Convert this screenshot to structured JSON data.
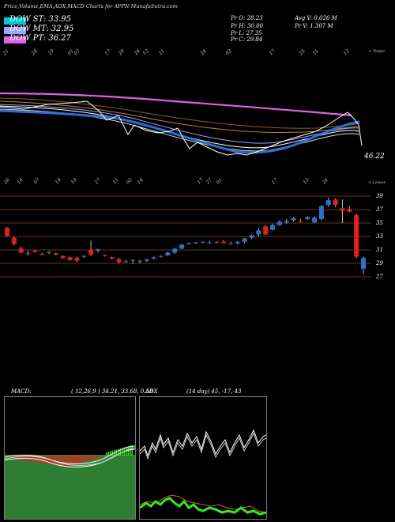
{
  "header": {
    "title": "Price,Volume,EMA,ADX,MACD Charts for APPN  MunafaSutra.com"
  },
  "legend": [
    {
      "label": "DOW ST: 33.95",
      "color": "#00c8d2"
    },
    {
      "label": "DOW MT: 32.95",
      "color": "#9ea5ff"
    },
    {
      "label": "DOW PT: 36.27",
      "color": "#e060e6"
    }
  ],
  "stats": {
    "pr_o": "Pr  O: 28.23",
    "pr_h": "Pr  H: 30.00",
    "pr_l": "Pr  L: 27.35",
    "pr_c": "Pr  C: 29.84",
    "avg_v": "Avg V: 0.026  M",
    "pr_v": "Pr  V: 1.307 M"
  },
  "panel_labels": {
    "top_tag": "< Toppe",
    "bottom_tag": "< Lowes",
    "price_label": "46.22"
  },
  "top_ticks": [
    "21",
    "28",
    "29",
    "01",
    "07",
    "17",
    "20",
    "24",
    "13",
    "21",
    "24",
    "03",
    "17",
    "25",
    "31",
    "12",
    "20",
    "25"
  ],
  "bottom_ticks": [
    "26",
    "16",
    "07",
    "19",
    "10",
    "27",
    "11",
    "02",
    "14",
    "17",
    "27",
    "01",
    "17",
    "13",
    "26"
  ],
  "colors": {
    "up": "#2b6fd6",
    "down": "#e31e1e",
    "ema_fast": "#2b6fd6",
    "ema_slow": "#d9462a",
    "grid": "#6b3514"
  },
  "macd": {
    "label": "MACD:",
    "params": "( 12,26,9 ) 34.21,  33.68,  0.58"
  },
  "adx": {
    "label": "ADX",
    "params": "(14  day) 45,  -17,  43"
  },
  "chart_data": {
    "type": "candlestick",
    "y_ticks": [
      "39",
      "37",
      "35",
      "33",
      "31",
      "29",
      "27"
    ],
    "y_range": [
      27,
      39
    ],
    "candles": [
      {
        "o": 34.3,
        "h": 34.4,
        "l": 33.0,
        "c": 33.1
      },
      {
        "o": 32.8,
        "h": 33.0,
        "l": 31.7,
        "c": 31.9
      },
      {
        "o": 31.2,
        "h": 31.5,
        "l": 30.5,
        "c": 30.6
      },
      {
        "o": 30.5,
        "h": 30.9,
        "l": 30.2,
        "c": 30.4
      },
      {
        "o": 30.9,
        "h": 31.0,
        "l": 30.6,
        "c": 30.7
      },
      {
        "o": 30.4,
        "h": 30.6,
        "l": 30.2,
        "c": 30.3
      },
      {
        "o": 30.6,
        "h": 30.8,
        "l": 30.4,
        "c": 30.7
      },
      {
        "o": 30.5,
        "h": 30.6,
        "l": 30.2,
        "c": 30.3
      },
      {
        "o": 30.1,
        "h": 30.2,
        "l": 29.7,
        "c": 29.8
      },
      {
        "o": 29.9,
        "h": 30.0,
        "l": 29.4,
        "c": 29.5
      },
      {
        "o": 29.8,
        "h": 30.0,
        "l": 29.2,
        "c": 29.4
      },
      {
        "o": 30.0,
        "h": 30.2,
        "l": 29.8,
        "c": 30.1
      },
      {
        "o": 31.0,
        "h": 32.4,
        "l": 30.1,
        "c": 30.3
      },
      {
        "o": 30.9,
        "h": 31.2,
        "l": 30.6,
        "c": 31.1
      },
      {
        "o": 30.2,
        "h": 30.3,
        "l": 30.0,
        "c": 30.1
      },
      {
        "o": 29.9,
        "h": 30.0,
        "l": 29.6,
        "c": 29.7
      },
      {
        "o": 29.6,
        "h": 29.8,
        "l": 29.0,
        "c": 29.2
      },
      {
        "o": 29.3,
        "h": 29.5,
        "l": 29.1,
        "c": 29.3
      },
      {
        "o": 29.4,
        "h": 29.6,
        "l": 28.9,
        "c": 29.5
      },
      {
        "o": 29.3,
        "h": 29.5,
        "l": 29.0,
        "c": 29.4
      },
      {
        "o": 29.4,
        "h": 29.7,
        "l": 29.2,
        "c": 29.6
      },
      {
        "o": 29.7,
        "h": 30.0,
        "l": 29.6,
        "c": 29.9
      },
      {
        "o": 30.0,
        "h": 30.2,
        "l": 29.9,
        "c": 30.1
      },
      {
        "o": 30.2,
        "h": 30.7,
        "l": 30.1,
        "c": 30.6
      },
      {
        "o": 30.6,
        "h": 31.3,
        "l": 30.4,
        "c": 31.2
      },
      {
        "o": 31.2,
        "h": 31.9,
        "l": 31.1,
        "c": 31.8
      },
      {
        "o": 31.9,
        "h": 32.1,
        "l": 31.8,
        "c": 32.0
      },
      {
        "o": 32.0,
        "h": 32.2,
        "l": 31.9,
        "c": 32.1
      },
      {
        "o": 32.1,
        "h": 32.3,
        "l": 32.0,
        "c": 32.2
      },
      {
        "o": 32.1,
        "h": 32.3,
        "l": 31.9,
        "c": 32.1
      },
      {
        "o": 32.2,
        "h": 32.3,
        "l": 32.0,
        "c": 32.1
      },
      {
        "o": 32.2,
        "h": 32.5,
        "l": 32.0,
        "c": 32.0
      },
      {
        "o": 32.0,
        "h": 32.2,
        "l": 31.8,
        "c": 31.9
      },
      {
        "o": 32.0,
        "h": 32.3,
        "l": 31.8,
        "c": 32.2
      },
      {
        "o": 32.2,
        "h": 32.8,
        "l": 32.0,
        "c": 32.7
      },
      {
        "o": 32.8,
        "h": 33.3,
        "l": 32.6,
        "c": 33.2
      },
      {
        "o": 33.3,
        "h": 34.2,
        "l": 33.0,
        "c": 33.9
      },
      {
        "o": 34.5,
        "h": 34.7,
        "l": 33.2,
        "c": 33.3
      },
      {
        "o": 34.0,
        "h": 34.9,
        "l": 33.9,
        "c": 34.7
      },
      {
        "o": 34.7,
        "h": 35.4,
        "l": 34.6,
        "c": 35.2
      },
      {
        "o": 35.1,
        "h": 35.6,
        "l": 34.9,
        "c": 35.3
      },
      {
        "o": 35.4,
        "h": 35.9,
        "l": 35.2,
        "c": 35.7
      },
      {
        "o": 35.3,
        "h": 35.6,
        "l": 35.1,
        "c": 35.2
      },
      {
        "o": 35.6,
        "h": 36.0,
        "l": 35.4,
        "c": 35.9
      },
      {
        "o": 35.1,
        "h": 36.0,
        "l": 35.0,
        "c": 35.8
      },
      {
        "o": 35.6,
        "h": 37.7,
        "l": 35.4,
        "c": 37.5
      },
      {
        "o": 37.7,
        "h": 38.8,
        "l": 37.4,
        "c": 38.4
      },
      {
        "o": 38.5,
        "h": 38.7,
        "l": 37.4,
        "c": 37.7
      },
      {
        "o": 37.2,
        "h": 38.5,
        "l": 35.0,
        "c": 36.8
      },
      {
        "o": 37.1,
        "h": 37.5,
        "l": 36.6,
        "c": 36.7
      },
      {
        "o": 36.2,
        "h": 36.4,
        "l": 29.8,
        "c": 30.0
      },
      {
        "o": 28.2,
        "h": 30.0,
        "l": 27.4,
        "c": 29.8
      }
    ]
  }
}
